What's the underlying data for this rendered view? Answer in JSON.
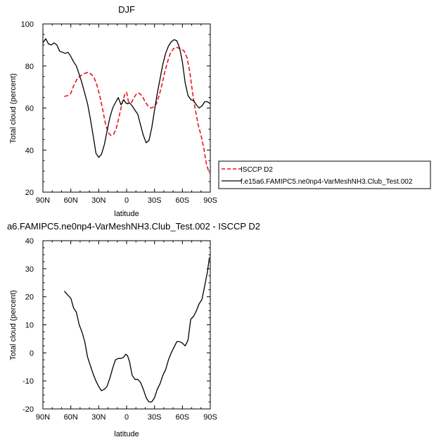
{
  "chart_data": [
    {
      "type": "line",
      "title": "DJF",
      "xlabel": "latitude",
      "ylabel": "Total cloud (percent)",
      "xlim": [
        90,
        -90
      ],
      "ylim": [
        20,
        100
      ],
      "xticks": [
        90,
        60,
        30,
        0,
        -30,
        -60,
        -90
      ],
      "xtick_labels": [
        "90N",
        "60N",
        "30N",
        "0",
        "30S",
        "60S",
        "90S"
      ],
      "yticks": [
        20,
        40,
        60,
        80,
        100
      ],
      "ytick_labels": [
        "20",
        "40",
        "60",
        "80",
        "100"
      ],
      "legend": "right",
      "series": [
        {
          "name": "ISCCP D2",
          "color": "#e8141e",
          "dash": "dashed",
          "x": [
            67,
            63,
            60,
            57,
            53,
            49,
            45,
            41,
            38,
            35,
            32,
            29,
            26,
            23,
            20,
            17,
            14,
            11,
            8,
            5,
            2,
            0,
            -2,
            -5,
            -8,
            -11,
            -14,
            -17,
            -20,
            -23,
            -26,
            -29,
            -32,
            -35,
            -38,
            -41,
            -44,
            -47,
            -50,
            -53,
            -56,
            -59,
            -62,
            -65,
            -68,
            -71,
            -74,
            -77,
            -80,
            -83,
            -86,
            -89
          ],
          "y": [
            65.5,
            66,
            67,
            70.5,
            74,
            75.5,
            76.5,
            77,
            76,
            74.5,
            71,
            66,
            60,
            53,
            48.5,
            47,
            47.5,
            50.5,
            56,
            62,
            66.5,
            67.5,
            63,
            62.5,
            65,
            67,
            67,
            65.5,
            63,
            61,
            60,
            60.5,
            62,
            66,
            71,
            77,
            82,
            86,
            88,
            89,
            88.5,
            88,
            87,
            84,
            77,
            67,
            59,
            52,
            47,
            41,
            33,
            29
          ]
        },
        {
          "name": "f.e15a6.FAMIPC5.ne0np4-VarMeshNH3.Club_Test.002",
          "color": "#000000",
          "dash": "solid",
          "x": [
            90,
            87,
            84,
            81,
            78,
            75,
            72,
            69,
            66,
            63,
            60,
            57,
            54,
            51,
            48,
            45,
            42,
            39,
            36,
            33,
            30,
            27,
            24,
            21,
            18,
            15,
            12,
            9,
            6,
            3,
            1,
            -1,
            -3,
            -6,
            -9,
            -12,
            -15,
            -18,
            -21,
            -24,
            -27,
            -30,
            -33,
            -36,
            -39,
            -42,
            -45,
            -48,
            -51,
            -54,
            -57,
            -60,
            -63,
            -66,
            -69,
            -72,
            -75,
            -78,
            -81,
            -84,
            -87,
            -90
          ],
          "y": [
            91,
            93,
            90.5,
            90,
            91,
            90,
            87,
            86.5,
            86,
            86.5,
            84.5,
            82,
            80,
            76,
            72,
            67,
            62,
            55,
            47,
            38.5,
            36.5,
            38,
            42.5,
            49,
            55.5,
            60,
            62.5,
            65,
            61.5,
            64,
            62.5,
            62,
            62.5,
            61,
            59,
            57,
            52,
            47,
            43.5,
            44.5,
            50.5,
            59,
            67,
            74,
            81,
            86,
            89.5,
            91.5,
            92.5,
            92,
            88.5,
            82,
            72,
            66,
            64,
            63.5,
            61.5,
            60,
            61,
            63,
            63,
            62
          ]
        }
      ]
    },
    {
      "type": "line",
      "title": "a6.FAMIPC5.ne0np4-VarMeshNH3.Club_Test.002 - ISCCP D2",
      "xlabel": "latitude",
      "ylabel": "Total cloud (percent)",
      "xlim": [
        90,
        -90
      ],
      "ylim": [
        -20,
        40
      ],
      "xticks": [
        90,
        60,
        30,
        0,
        -30,
        -60,
        -90
      ],
      "xtick_labels": [
        "90N",
        "60N",
        "30N",
        "0",
        "30S",
        "60S",
        "90S"
      ],
      "yticks": [
        -20,
        -10,
        0,
        10,
        20,
        30,
        40
      ],
      "ytick_labels": [
        "-20",
        "-10",
        "0",
        "10",
        "20",
        "30",
        "40"
      ],
      "series": [
        {
          "color": "#000000",
          "dash": "solid",
          "x": [
            67,
            63,
            60,
            57,
            54,
            51,
            48,
            45,
            42,
            39,
            36,
            33,
            30,
            27,
            24,
            21,
            18,
            15,
            12,
            9,
            6,
            3,
            1,
            -1,
            -3,
            -6,
            -9,
            -12,
            -15,
            -18,
            -21,
            -24,
            -27,
            -30,
            -33,
            -36,
            -39,
            -42,
            -45,
            -48,
            -51,
            -54,
            -57,
            -60,
            -63,
            -66,
            -69,
            -72,
            -75,
            -78,
            -81,
            -84,
            -87,
            -89
          ],
          "y": [
            22,
            20.5,
            19.5,
            16,
            14.5,
            10,
            7.5,
            4,
            -1.5,
            -4.5,
            -7.5,
            -10,
            -12,
            -13.5,
            -13,
            -12,
            -9,
            -5.5,
            -2.5,
            -2,
            -2,
            -1.5,
            -0.5,
            -1,
            -3,
            -8,
            -9.5,
            -9.5,
            -10.5,
            -13,
            -16,
            -17.5,
            -17.5,
            -16,
            -13,
            -11,
            -8,
            -6,
            -2.5,
            0,
            2,
            4,
            4,
            3.5,
            2.5,
            4.5,
            12,
            13,
            15,
            17.5,
            19,
            24,
            29,
            34
          ]
        }
      ]
    }
  ]
}
